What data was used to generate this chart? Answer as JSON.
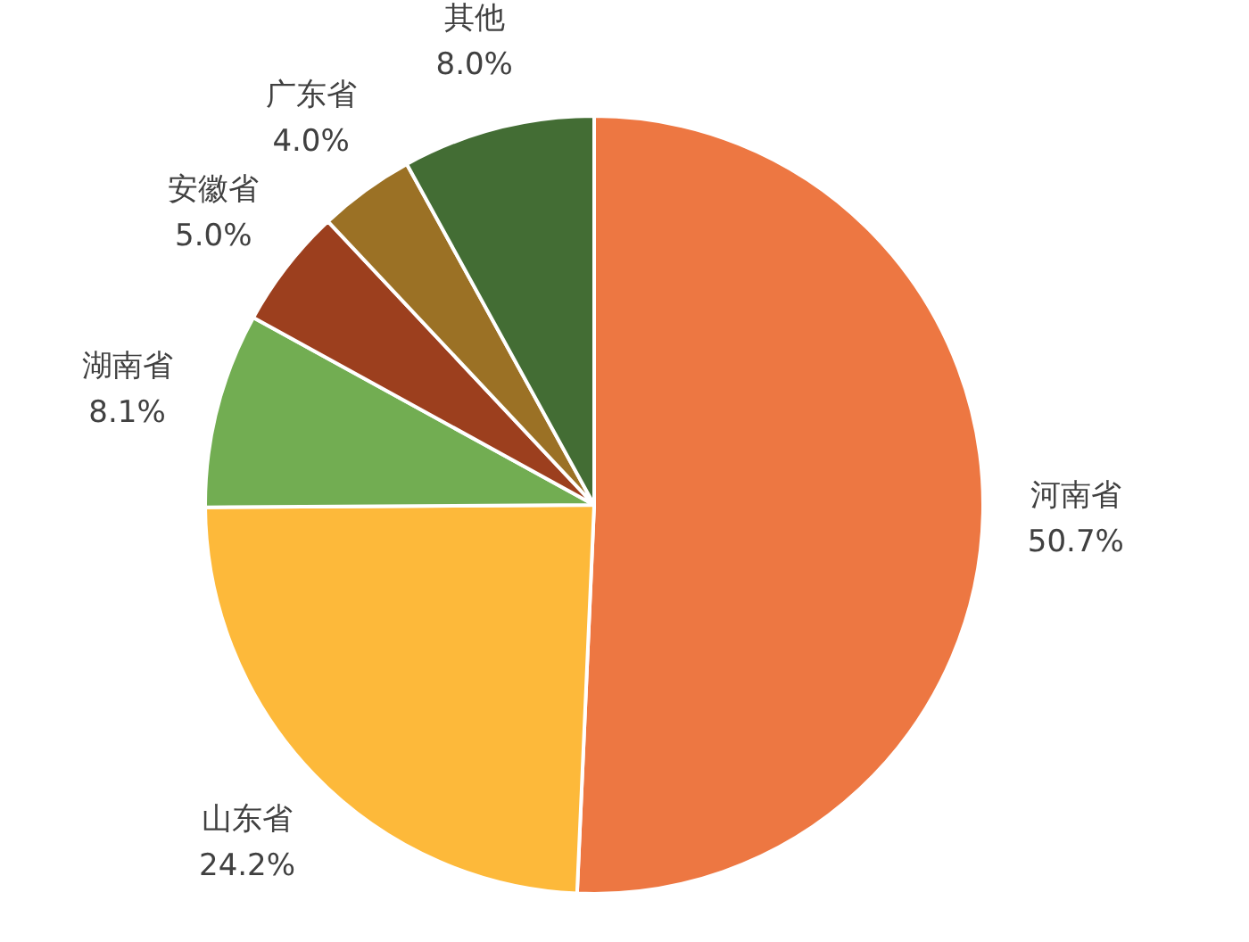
{
  "chart_data": {
    "type": "pie",
    "categories": [
      "河南省",
      "山东省",
      "湖南省",
      "安徽省",
      "广东省",
      "其他"
    ],
    "values": [
      50.7,
      24.2,
      8.1,
      5.0,
      4.0,
      8.0
    ],
    "colors": [
      "#ed7742",
      "#fdb93a",
      "#72ad52",
      "#9c3f1e",
      "#9b7125",
      "#436d34"
    ],
    "value_labels": [
      "50.7%",
      "24.2%",
      "8.1%",
      "5.0%",
      "4.0%",
      "8.0%"
    ]
  }
}
